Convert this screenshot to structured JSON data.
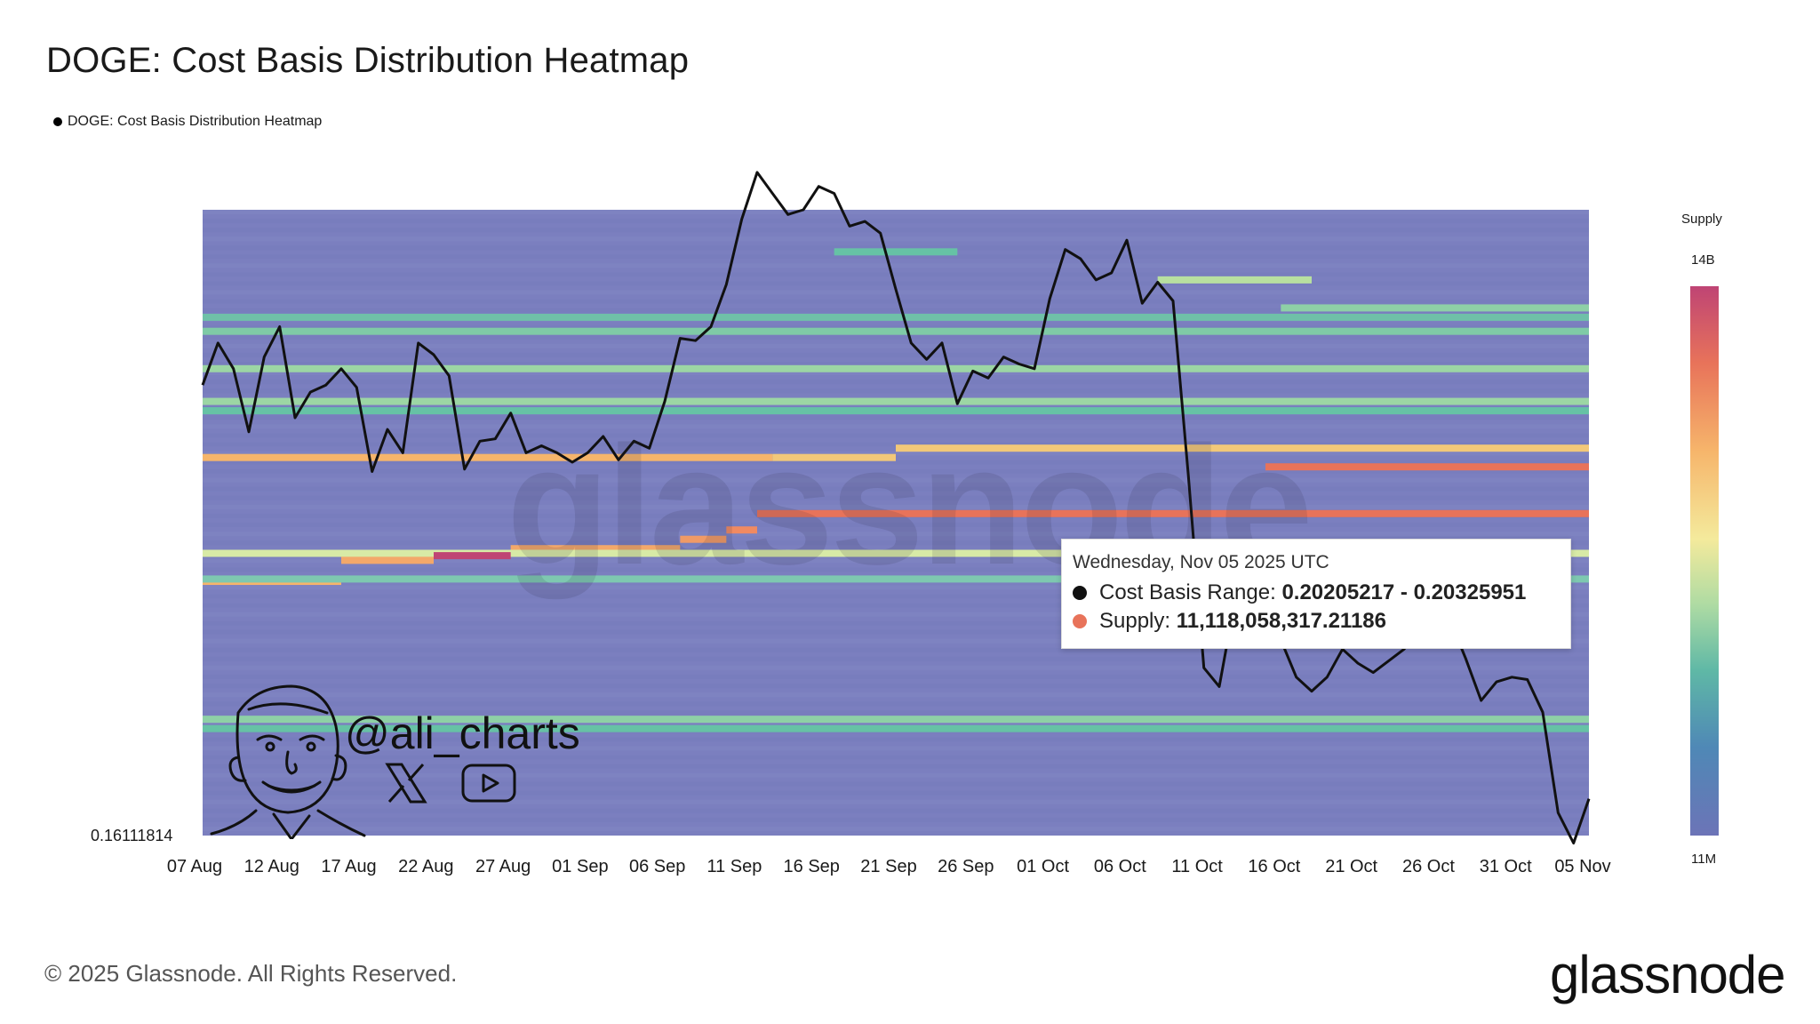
{
  "title": "DOGE: Cost Basis Distribution Heatmap",
  "legend_label": "DOGE: Cost Basis Distribution Heatmap",
  "colorbar": {
    "title": "Supply",
    "max_label": "14B",
    "min_label": "11M"
  },
  "y_min_label": "0.16111814",
  "tooltip": {
    "date": "Wednesday, Nov 05 2025 UTC",
    "range_label": "Cost Basis Range:",
    "range_value": "0.20205217 - 0.20325951",
    "supply_label": "Supply:",
    "supply_value": "11,118,058,317.21186",
    "range_color": "#111111",
    "supply_color": "#e8735a"
  },
  "branding": {
    "handle": "@ali_charts",
    "watermark": "glassnode",
    "copyright": "© 2025 Glassnode. All Rights Reserved.",
    "logo": "glassnode",
    "icons": [
      "x-icon",
      "youtube-icon"
    ]
  },
  "chart_data": {
    "type": "heatmap",
    "title": "DOGE: Cost Basis Distribution Heatmap",
    "xlabel": "",
    "ylabel": "",
    "x_ticks": [
      "07 Aug",
      "12 Aug",
      "17 Aug",
      "22 Aug",
      "27 Aug",
      "01 Sep",
      "06 Sep",
      "11 Sep",
      "16 Sep",
      "21 Sep",
      "26 Sep",
      "01 Oct",
      "06 Oct",
      "11 Oct",
      "16 Oct",
      "21 Oct",
      "26 Oct",
      "31 Oct",
      "05 Nov"
    ],
    "x_range": [
      "2025-08-07",
      "2025-11-05"
    ],
    "y_range": [
      0.16111814,
      0.295
    ],
    "colorscale_range": [
      "11M",
      "14B"
    ],
    "heatmap_background": "#7b7fbf",
    "bands": [
      {
        "price": 0.242,
        "start": "2025-08-07",
        "end": "2025-09-13",
        "supply": "6B",
        "color": "#f6b56b"
      },
      {
        "price": 0.242,
        "start": "2025-09-13",
        "end": "2025-09-21",
        "supply": "7B",
        "color": "#f2c879"
      },
      {
        "price": 0.244,
        "start": "2025-09-21",
        "end": "2025-11-05",
        "supply": "7B",
        "color": "#f2c879"
      },
      {
        "price": 0.24,
        "start": "2025-10-15",
        "end": "2025-11-05",
        "supply": "11B",
        "color": "#e8735a"
      },
      {
        "price": 0.23,
        "start": "2025-09-12",
        "end": "2025-11-05",
        "supply": "11B",
        "color": "#e8735a"
      },
      {
        "price": 0.2265,
        "start": "2025-09-10",
        "end": "2025-09-12",
        "supply": "9B",
        "color": "#f08a62"
      },
      {
        "price": 0.2245,
        "start": "2025-09-07",
        "end": "2025-09-10",
        "supply": "9B",
        "color": "#f09a66"
      },
      {
        "price": 0.2225,
        "start": "2025-08-27",
        "end": "2025-09-07",
        "supply": "8B",
        "color": "#f3a86a"
      },
      {
        "price": 0.2215,
        "start": "2025-08-07",
        "end": "2025-11-05",
        "supply": "2B",
        "color": "#d8eaa6"
      },
      {
        "price": 0.221,
        "start": "2025-08-22",
        "end": "2025-08-27",
        "supply": "14B",
        "color": "#bf4474"
      },
      {
        "price": 0.22,
        "start": "2025-08-16",
        "end": "2025-08-22",
        "supply": "8B",
        "color": "#f3a86a"
      },
      {
        "price": 0.2155,
        "start": "2025-08-07",
        "end": "2025-08-16",
        "supply": "7B",
        "color": "#f6b56b"
      },
      {
        "price": 0.252,
        "start": "2025-08-07",
        "end": "2025-11-05",
        "supply": "2B",
        "color": "#66c2a5"
      },
      {
        "price": 0.254,
        "start": "2025-08-07",
        "end": "2025-11-05",
        "supply": "1B",
        "color": "#9cd6a4"
      },
      {
        "price": 0.261,
        "start": "2025-08-07",
        "end": "2025-11-05",
        "supply": "1B",
        "color": "#9cd6a4"
      },
      {
        "price": 0.269,
        "start": "2025-08-07",
        "end": "2025-11-05",
        "supply": "1B",
        "color": "#7fcaa6"
      },
      {
        "price": 0.272,
        "start": "2025-08-07",
        "end": "2025-11-05",
        "supply": "1B",
        "color": "#6fc0a8"
      },
      {
        "price": 0.274,
        "start": "2025-10-16",
        "end": "2025-11-05",
        "supply": "2B",
        "color": "#8ed0a6"
      },
      {
        "price": 0.28,
        "start": "2025-10-08",
        "end": "2025-10-18",
        "supply": "2B",
        "color": "#b8e0a0"
      },
      {
        "price": 0.286,
        "start": "2025-09-17",
        "end": "2025-09-25",
        "supply": "1B",
        "color": "#66c2a5"
      },
      {
        "price": 0.216,
        "start": "2025-08-07",
        "end": "2025-11-05",
        "supply": "900M",
        "color": "#7ec8b0"
      },
      {
        "price": 0.184,
        "start": "2025-08-07",
        "end": "2025-11-05",
        "supply": "1B",
        "color": "#66c2a5"
      },
      {
        "price": 0.186,
        "start": "2025-08-07",
        "end": "2025-11-05",
        "supply": "700M",
        "color": "#8ed0a6"
      }
    ],
    "series": [
      {
        "type": "line",
        "color": "#111111",
        "points": [
          [
            "2025-08-07",
            0.2575
          ],
          [
            "2025-08-08",
            0.2665
          ],
          [
            "2025-08-09",
            0.261
          ],
          [
            "2025-08-10",
            0.2475
          ],
          [
            "2025-08-11",
            0.2635
          ],
          [
            "2025-08-12",
            0.27
          ],
          [
            "2025-08-13",
            0.2505
          ],
          [
            "2025-08-14",
            0.256
          ],
          [
            "2025-08-15",
            0.2575
          ],
          [
            "2025-08-16",
            0.261
          ],
          [
            "2025-08-17",
            0.257
          ],
          [
            "2025-08-18",
            0.239
          ],
          [
            "2025-08-19",
            0.248
          ],
          [
            "2025-08-20",
            0.243
          ],
          [
            "2025-08-21",
            0.2665
          ],
          [
            "2025-08-22",
            0.264
          ],
          [
            "2025-08-23",
            0.2595
          ],
          [
            "2025-08-24",
            0.2395
          ],
          [
            "2025-08-25",
            0.2455
          ],
          [
            "2025-08-26",
            0.246
          ],
          [
            "2025-08-27",
            0.2515
          ],
          [
            "2025-08-28",
            0.243
          ],
          [
            "2025-08-29",
            0.2445
          ],
          [
            "2025-08-30",
            0.243
          ],
          [
            "2025-08-31",
            0.241
          ],
          [
            "2025-09-01",
            0.243
          ],
          [
            "2025-09-02",
            0.2465
          ],
          [
            "2025-09-03",
            0.2415
          ],
          [
            "2025-09-04",
            0.2455
          ],
          [
            "2025-09-05",
            0.244
          ],
          [
            "2025-09-06",
            0.254
          ],
          [
            "2025-09-07",
            0.2675
          ],
          [
            "2025-09-08",
            0.267
          ],
          [
            "2025-09-09",
            0.27
          ],
          [
            "2025-09-10",
            0.279
          ],
          [
            "2025-09-11",
            0.293
          ],
          [
            "2025-09-12",
            0.303
          ],
          [
            "2025-09-13",
            0.2985
          ],
          [
            "2025-09-14",
            0.294
          ],
          [
            "2025-09-15",
            0.295
          ],
          [
            "2025-09-16",
            0.3
          ],
          [
            "2025-09-17",
            0.2985
          ],
          [
            "2025-09-18",
            0.2915
          ],
          [
            "2025-09-19",
            0.2925
          ],
          [
            "2025-09-20",
            0.29
          ],
          [
            "2025-09-21",
            0.278
          ],
          [
            "2025-09-22",
            0.2665
          ],
          [
            "2025-09-23",
            0.263
          ],
          [
            "2025-09-24",
            0.2665
          ],
          [
            "2025-09-25",
            0.2535
          ],
          [
            "2025-09-26",
            0.2605
          ],
          [
            "2025-09-27",
            0.259
          ],
          [
            "2025-09-28",
            0.2635
          ],
          [
            "2025-09-29",
            0.262
          ],
          [
            "2025-09-30",
            0.261
          ],
          [
            "2025-10-01",
            0.276
          ],
          [
            "2025-10-02",
            0.2865
          ],
          [
            "2025-10-03",
            0.2845
          ],
          [
            "2025-10-04",
            0.28
          ],
          [
            "2025-10-05",
            0.2815
          ],
          [
            "2025-10-06",
            0.2885
          ],
          [
            "2025-10-07",
            0.275
          ],
          [
            "2025-10-08",
            0.2795
          ],
          [
            "2025-10-09",
            0.2755
          ],
          [
            "2025-10-10",
            0.238
          ],
          [
            "2025-10-11",
            0.197
          ],
          [
            "2025-10-12",
            0.193
          ],
          [
            "2025-10-13",
            0.211
          ],
          [
            "2025-10-14",
            0.2075
          ],
          [
            "2025-10-15",
            0.205
          ],
          [
            "2025-10-16",
            0.203
          ],
          [
            "2025-10-17",
            0.195
          ],
          [
            "2025-10-18",
            0.192
          ],
          [
            "2025-10-19",
            0.195
          ],
          [
            "2025-10-20",
            0.201
          ],
          [
            "2025-10-21",
            0.198
          ],
          [
            "2025-10-22",
            0.196
          ],
          [
            "2025-10-23",
            0.1985
          ],
          [
            "2025-10-24",
            0.201
          ],
          [
            "2025-10-25",
            0.205
          ],
          [
            "2025-10-26",
            0.204
          ],
          [
            "2025-10-27",
            0.207
          ],
          [
            "2025-10-28",
            0.199
          ],
          [
            "2025-10-29",
            0.19
          ],
          [
            "2025-10-30",
            0.194
          ],
          [
            "2025-10-31",
            0.195
          ],
          [
            "2025-11-01",
            0.1945
          ],
          [
            "2025-11-02",
            0.1875
          ],
          [
            "2025-11-03",
            0.166
          ],
          [
            "2025-11-04",
            0.1595
          ],
          [
            "2025-11-05",
            0.169
          ]
        ]
      }
    ],
    "grid": false,
    "legend_position": "top-left"
  }
}
